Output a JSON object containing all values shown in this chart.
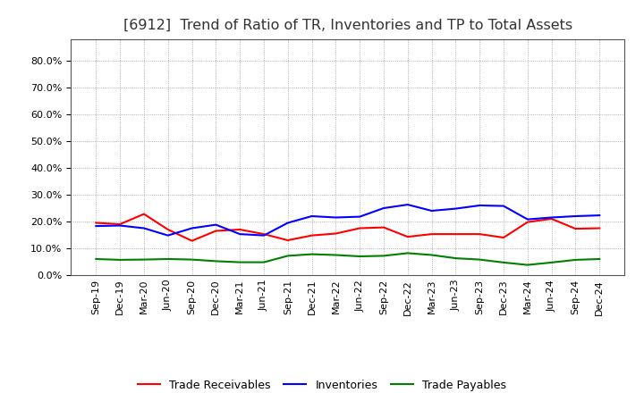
{
  "title": "[6912]  Trend of Ratio of TR, Inventories and TP to Total Assets",
  "x_labels": [
    "Sep-19",
    "Dec-19",
    "Mar-20",
    "Jun-20",
    "Sep-20",
    "Dec-20",
    "Mar-21",
    "Jun-21",
    "Sep-21",
    "Dec-21",
    "Mar-22",
    "Jun-22",
    "Sep-22",
    "Dec-22",
    "Mar-23",
    "Jun-23",
    "Sep-23",
    "Dec-23",
    "Mar-24",
    "Jun-24",
    "Sep-24",
    "Dec-24"
  ],
  "trade_receivables": [
    0.195,
    0.19,
    0.228,
    0.17,
    0.128,
    0.165,
    0.17,
    0.153,
    0.13,
    0.148,
    0.155,
    0.175,
    0.178,
    0.143,
    0.153,
    0.153,
    0.153,
    0.14,
    0.198,
    0.21,
    0.173,
    0.175
  ],
  "inventories": [
    0.183,
    0.185,
    0.175,
    0.148,
    0.175,
    0.188,
    0.153,
    0.148,
    0.195,
    0.22,
    0.215,
    0.218,
    0.25,
    0.263,
    0.24,
    0.248,
    0.26,
    0.258,
    0.208,
    0.215,
    0.22,
    0.223
  ],
  "trade_payables": [
    0.06,
    0.057,
    0.058,
    0.06,
    0.058,
    0.052,
    0.048,
    0.048,
    0.072,
    0.078,
    0.075,
    0.07,
    0.072,
    0.082,
    0.075,
    0.063,
    0.058,
    0.047,
    0.038,
    0.047,
    0.057,
    0.06
  ],
  "line_colors": {
    "trade_receivables": "#ff0000",
    "inventories": "#0000ff",
    "trade_payables": "#008000"
  },
  "legend_labels": [
    "Trade Receivables",
    "Inventories",
    "Trade Payables"
  ],
  "ylim": [
    0.0,
    0.88
  ],
  "yticks": [
    0.0,
    0.1,
    0.2,
    0.3,
    0.4,
    0.5,
    0.6,
    0.7,
    0.8
  ],
  "background_color": "#ffffff",
  "plot_bg_color": "#ffffff",
  "grid_color": "#999999",
  "title_fontsize": 11.5,
  "tick_fontsize": 8,
  "legend_fontsize": 9,
  "line_width": 1.5
}
